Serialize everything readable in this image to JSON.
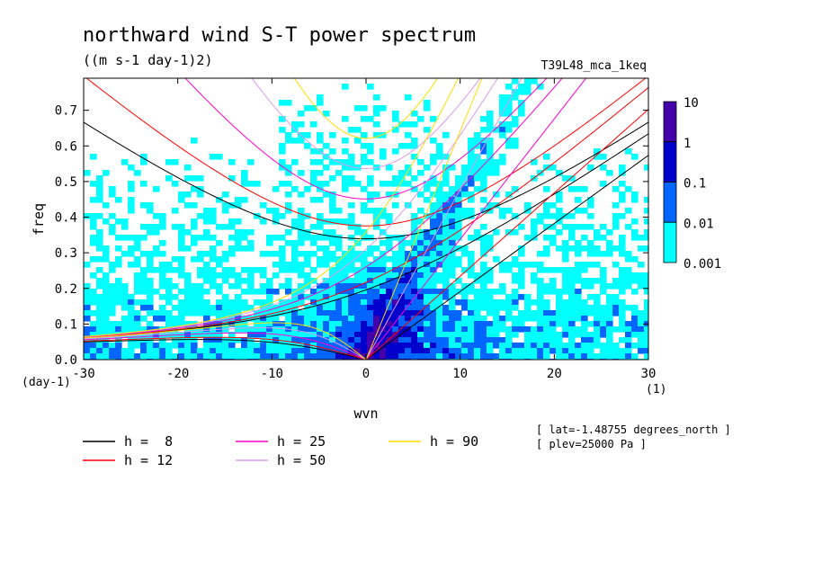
{
  "chart_data": {
    "type": "heatmap",
    "title": "northward wind S-T power spectrum",
    "subtitle": "((m s-1 day-1)2)",
    "run_label": "T39L48_mca_1keq",
    "xlabel": "wvn",
    "ylabel": "freq",
    "x_unit": "(1)",
    "y_unit": "(day-1)",
    "xlim": [
      -30,
      30
    ],
    "ylim": [
      0,
      0.79
    ],
    "x_ticks": [
      "-30",
      "-20",
      "-10",
      "0",
      "10",
      "20",
      "30"
    ],
    "x_tick_values": [
      -30,
      -20,
      -10,
      0,
      10,
      20,
      30
    ],
    "y_ticks": [
      "0.0",
      "0.1",
      "0.2",
      "0.3",
      "0.4",
      "0.5",
      "0.6",
      "0.7"
    ],
    "y_tick_values": [
      0,
      0.1,
      0.2,
      0.3,
      0.4,
      0.5,
      0.6,
      0.7
    ],
    "colorbar": {
      "labels": [
        "10",
        "1",
        "0.1",
        "0.01",
        "0.001"
      ],
      "levels": [
        0.001,
        0.01,
        0.1,
        1,
        10
      ],
      "colors": [
        "#00ffff",
        "#0066ff",
        "#0000cc",
        "#4400aa"
      ]
    },
    "legend": [
      {
        "label": "h =  8",
        "h": 8,
        "color": "#000000"
      },
      {
        "label": "h = 12",
        "h": 12,
        "color": "#ff0000"
      },
      {
        "label": "h = 25",
        "h": 25,
        "color": "#ff00cc"
      },
      {
        "label": "h = 50",
        "h": 50,
        "color": "#dd99ee"
      },
      {
        "label": "h = 90",
        "h": 90,
        "color": "#ffdd00"
      }
    ],
    "annotations": [
      "[ lat=-1.48755 degrees_north ]",
      "[ plev=25000 Pa ]"
    ],
    "grid": false,
    "legend_position": "bottom"
  }
}
